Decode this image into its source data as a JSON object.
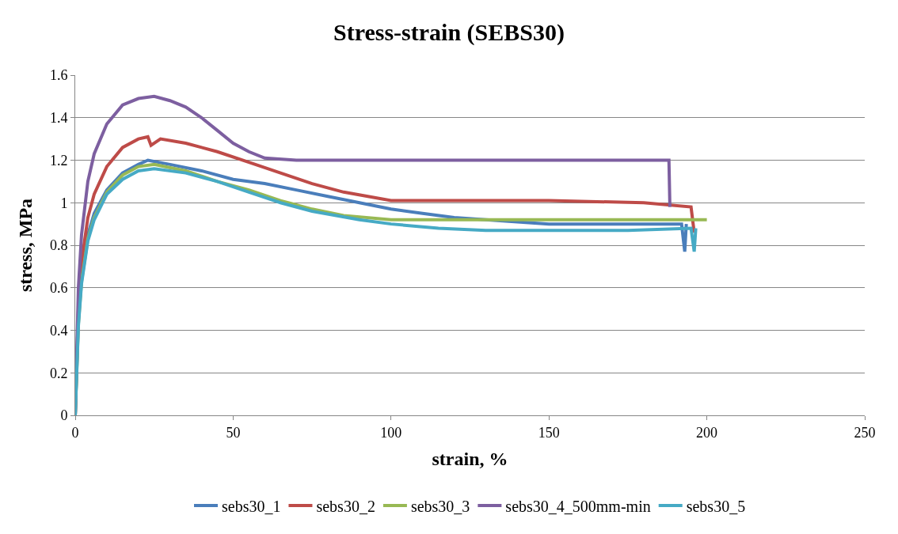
{
  "chart_data": {
    "type": "line",
    "title": "Stress-strain (SEBS30)",
    "xlabel": "strain, %",
    "ylabel": "stress, MPa",
    "xlim": [
      0,
      250
    ],
    "xticks": [
      0,
      50,
      100,
      150,
      200,
      250
    ],
    "ylim": [
      0,
      1.6
    ],
    "yticks": [
      0,
      0.2,
      0.4,
      0.6,
      0.8,
      1,
      1.2,
      1.4,
      1.6
    ],
    "grid": "y",
    "legend": "bottom",
    "marker": "none",
    "line_style": "solid",
    "series": [
      {
        "name": "sebs30_1",
        "color": "#4a7ebb",
        "x": [
          0,
          1,
          2,
          4,
          6,
          10,
          15,
          20,
          23,
          30,
          40,
          50,
          60,
          70,
          80,
          90,
          100,
          110,
          120,
          130,
          150,
          170,
          192,
          193,
          193.5
        ],
        "values": [
          0,
          0.45,
          0.65,
          0.85,
          0.95,
          1.06,
          1.14,
          1.18,
          1.2,
          1.18,
          1.15,
          1.11,
          1.09,
          1.06,
          1.03,
          1.0,
          0.97,
          0.95,
          0.93,
          0.92,
          0.9,
          0.9,
          0.9,
          0.77,
          0.9
        ]
      },
      {
        "name": "sebs30_2",
        "color": "#be4b48",
        "x": [
          0,
          1,
          2,
          4,
          6,
          10,
          15,
          20,
          23,
          24,
          27,
          35,
          45,
          55,
          65,
          75,
          85,
          100,
          120,
          150,
          180,
          195,
          196
        ],
        "values": [
          0,
          0.5,
          0.72,
          0.93,
          1.04,
          1.17,
          1.26,
          1.3,
          1.31,
          1.27,
          1.3,
          1.28,
          1.24,
          1.19,
          1.14,
          1.09,
          1.05,
          1.01,
          1.01,
          1.01,
          1.0,
          0.98,
          0.86
        ]
      },
      {
        "name": "sebs30_3",
        "color": "#98b954",
        "x": [
          0,
          1,
          2,
          4,
          6,
          10,
          15,
          20,
          25,
          35,
          45,
          55,
          65,
          75,
          85,
          100,
          110,
          130,
          150,
          175,
          200
        ],
        "values": [
          0,
          0.43,
          0.63,
          0.83,
          0.93,
          1.05,
          1.13,
          1.17,
          1.18,
          1.15,
          1.1,
          1.06,
          1.01,
          0.97,
          0.94,
          0.92,
          0.92,
          0.92,
          0.92,
          0.92,
          0.92
        ]
      },
      {
        "name": "sebs30_4_500mm-min",
        "color": "#7d5fa0",
        "x": [
          0,
          1,
          2,
          4,
          6,
          10,
          15,
          20,
          25,
          30,
          35,
          40,
          45,
          50,
          55,
          60,
          70,
          100,
          150,
          188,
          188.3
        ],
        "values": [
          0,
          0.6,
          0.85,
          1.1,
          1.23,
          1.37,
          1.46,
          1.49,
          1.5,
          1.48,
          1.45,
          1.4,
          1.34,
          1.28,
          1.24,
          1.21,
          1.2,
          1.2,
          1.2,
          1.2,
          0.98
        ]
      },
      {
        "name": "sebs30_5",
        "color": "#46aac5",
        "x": [
          0,
          1,
          2,
          4,
          6,
          10,
          15,
          20,
          25,
          35,
          45,
          55,
          65,
          75,
          90,
          100,
          115,
          130,
          150,
          175,
          195,
          196,
          196.5
        ],
        "values": [
          0,
          0.42,
          0.62,
          0.82,
          0.92,
          1.04,
          1.11,
          1.15,
          1.16,
          1.14,
          1.1,
          1.05,
          1.0,
          0.96,
          0.92,
          0.9,
          0.88,
          0.87,
          0.87,
          0.87,
          0.88,
          0.77,
          0.88
        ]
      }
    ]
  }
}
